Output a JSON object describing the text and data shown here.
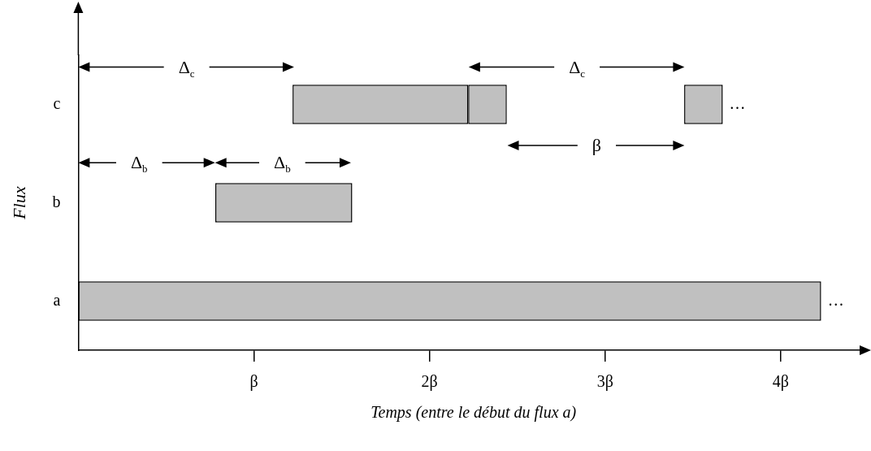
{
  "chart_data": {
    "type": "bar",
    "orientation": "horizontal",
    "xlabel": "Temps (entre le début du flux a)",
    "ylabel": "Flux",
    "categories": [
      "c",
      "b",
      "a"
    ],
    "series": [
      {
        "color": "#c0c0c0",
        "values": [
          1.0,
          0.78,
          4.23
        ],
        "base": [
          1.22,
          0.78,
          0
        ],
        "value_labels": [
          null,
          null,
          "…"
        ]
      },
      {
        "color": "#c0c0c0",
        "values": [
          0.22,
          null,
          null
        ],
        "base": [
          2.22,
          null,
          null
        ]
      },
      {
        "color": "#c0c0c0",
        "values": [
          0.22,
          null,
          null
        ],
        "base": [
          3.45,
          null,
          null
        ],
        "value_labels": [
          "…",
          null,
          null
        ]
      }
    ],
    "xlim": [
      0,
      4.5
    ],
    "xticks": [
      {
        "value": 1,
        "label": "β"
      },
      {
        "value": 2,
        "label": "2β"
      },
      {
        "value": 3,
        "label": "3β"
      },
      {
        "value": 4,
        "label": "4β"
      }
    ],
    "annotations": [
      "Δ$_{c}$",
      "Δ$_{c}$",
      "β",
      "Δ$_{b}$",
      "Δ$_{b}$"
    ],
    "grid": false,
    "legend": false
  }
}
